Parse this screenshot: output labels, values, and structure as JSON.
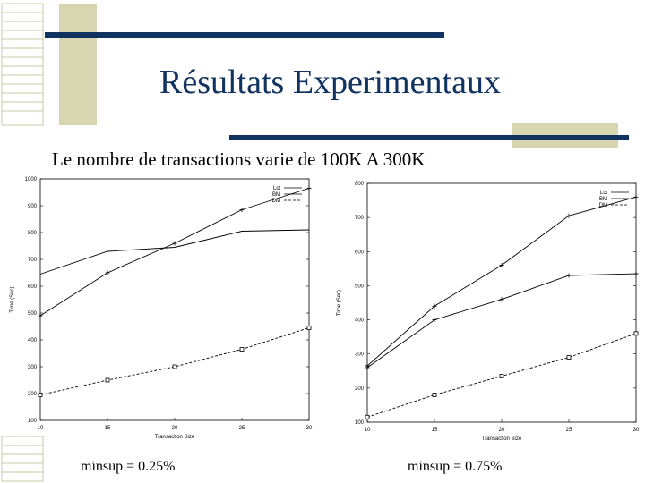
{
  "slide": {
    "title": "Résultats Experimentaux",
    "subtitle": "Le nombre de transactions varie de 100K A 300K"
  },
  "chart_data": [
    {
      "type": "line",
      "caption": "minsup = 0.25%",
      "x_label": "Transaction Size",
      "y_label": "Time (Sec)",
      "x": [
        10,
        15,
        20,
        25,
        30
      ],
      "xlim": [
        10,
        30
      ],
      "xticks": [
        10,
        15,
        20,
        25,
        30
      ],
      "ylim": [
        100,
        1000
      ],
      "yticks": [
        100,
        200,
        300,
        400,
        500,
        600,
        700,
        800,
        900,
        1000
      ],
      "series": [
        {
          "name": "Lct",
          "color": "#000000",
          "marker": "plus",
          "dashed": false,
          "values": [
            490,
            650,
            760,
            885,
            965
          ]
        },
        {
          "name": "BM",
          "color": "#000000",
          "marker": "none",
          "dashed": false,
          "values": [
            645,
            730,
            745,
            805,
            810
          ]
        },
        {
          "name": "DM",
          "color": "#000000",
          "marker": "square",
          "dashed": true,
          "values": [
            195,
            250,
            300,
            365,
            445
          ]
        }
      ]
    },
    {
      "type": "line",
      "caption": "minsup = 0.75%",
      "x_label": "Transaction Size",
      "y_label": "Time (Sec)",
      "x": [
        10,
        15,
        20,
        25,
        30
      ],
      "xlim": [
        10,
        30
      ],
      "xticks": [
        10,
        15,
        20,
        25,
        30
      ],
      "ylim": [
        100,
        800
      ],
      "yticks": [
        100,
        200,
        300,
        400,
        500,
        600,
        700,
        800
      ],
      "series": [
        {
          "name": "Lct",
          "color": "#000000",
          "marker": "plus",
          "dashed": false,
          "values": [
            265,
            440,
            560,
            705,
            760
          ]
        },
        {
          "name": "BM",
          "color": "#000000",
          "marker": "plus",
          "dashed": false,
          "values": [
            260,
            400,
            460,
            530,
            535
          ]
        },
        {
          "name": "DM",
          "color": "#000000",
          "marker": "square",
          "dashed": true,
          "values": [
            115,
            180,
            235,
            290,
            360
          ]
        }
      ]
    }
  ]
}
